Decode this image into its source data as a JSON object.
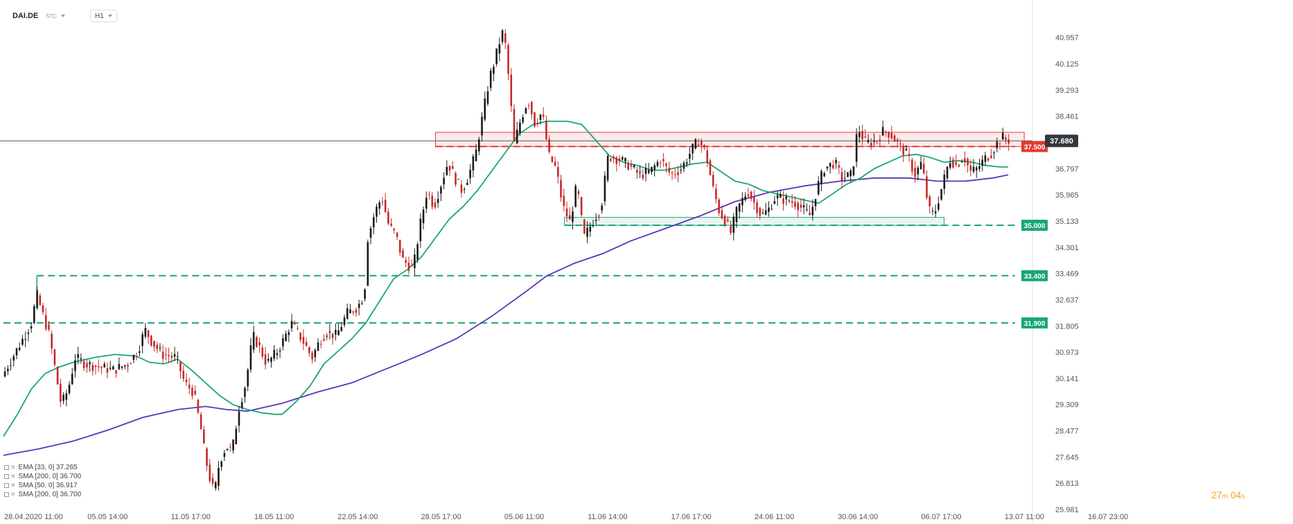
{
  "header": {
    "symbol": "DAI.DE",
    "source": "STC",
    "timeframe": "H1"
  },
  "current_price": "37.680",
  "indicators": [
    {
      "label": "EMA [33, 0]",
      "value": "37.265"
    },
    {
      "label": "SMA [200, 0]",
      "value": "36.700"
    },
    {
      "label": "SMA [50, 0]",
      "value": "36.917"
    },
    {
      "label": "SMA [200, 0]",
      "value": "36.700"
    }
  ],
  "timer": {
    "minutes": "27",
    "min_unit": "m",
    "seconds": "04",
    "sec_unit": "s"
  },
  "colors": {
    "up": "#1a1a1a",
    "down": "#c62828",
    "ema": "#1aa57a",
    "sma": "#5b35b5",
    "resistance": "#e53935",
    "support": "#1aa57a",
    "price_tag": "#33383d"
  },
  "chart_data": {
    "type": "candlestick",
    "ylim": [
      25.981,
      41.6
    ],
    "y_ticks": [
      "40.957",
      "40.125",
      "39.293",
      "38.461",
      "36.797",
      "35.965",
      "35.133",
      "34.301",
      "33.469",
      "32.637",
      "31.805",
      "30.973",
      "30.141",
      "29.309",
      "28.477",
      "27.645",
      "26.813",
      "25.981"
    ],
    "x_ticks": [
      "28.04.2020  11:00",
      "05.05  14:00",
      "11.05  17:00",
      "18.05  11:00",
      "22.05  14:00",
      "28.05  17:00",
      "05.06  11:00",
      "11.06  14:00",
      "17.06  17:00",
      "24.06  11:00",
      "30.06  14:00",
      "06.07  17:00",
      "13.07  11:00",
      "16.07  23:00"
    ],
    "levels": [
      {
        "label": "37.500",
        "value": 37.5,
        "color": "resistance"
      },
      {
        "label": "35.000",
        "value": 35.0,
        "color": "support"
      },
      {
        "label": "33.400",
        "value": 33.4,
        "color": "support"
      },
      {
        "label": "31.900",
        "value": 31.9,
        "color": "support"
      }
    ],
    "zones": [
      {
        "type": "resistance",
        "from": 37.5,
        "to": 37.95
      },
      {
        "type": "support",
        "from": 35.0,
        "to": 35.25
      }
    ],
    "price_path": [
      [
        0,
        30.2
      ],
      [
        15,
        30.8
      ],
      [
        30,
        31.4
      ],
      [
        42,
        31.9
      ],
      [
        50,
        32.8
      ],
      [
        58,
        32.2
      ],
      [
        68,
        31.5
      ],
      [
        78,
        30.2
      ],
      [
        85,
        29.3
      ],
      [
        95,
        29.8
      ],
      [
        105,
        30.8
      ],
      [
        120,
        30.6
      ],
      [
        140,
        30.5
      ],
      [
        160,
        30.4
      ],
      [
        180,
        30.6
      ],
      [
        195,
        31.0
      ],
      [
        205,
        31.7
      ],
      [
        215,
        31.3
      ],
      [
        230,
        30.9
      ],
      [
        250,
        30.8
      ],
      [
        262,
        30.0
      ],
      [
        275,
        29.7
      ],
      [
        285,
        28.6
      ],
      [
        292,
        27.6
      ],
      [
        300,
        26.8
      ],
      [
        305,
        26.5
      ],
      [
        312,
        27.5
      ],
      [
        322,
        28.0
      ],
      [
        330,
        27.8
      ],
      [
        340,
        29.2
      ],
      [
        350,
        30.0
      ],
      [
        360,
        31.5
      ],
      [
        370,
        31.1
      ],
      [
        380,
        30.6
      ],
      [
        395,
        31.0
      ],
      [
        405,
        31.4
      ],
      [
        415,
        31.9
      ],
      [
        430,
        31.4
      ],
      [
        445,
        30.8
      ],
      [
        455,
        31.3
      ],
      [
        465,
        31.6
      ],
      [
        480,
        31.5
      ],
      [
        495,
        32.2
      ],
      [
        510,
        32.4
      ],
      [
        520,
        32.8
      ],
      [
        525,
        34.6
      ],
      [
        535,
        35.4
      ],
      [
        545,
        35.9
      ],
      [
        555,
        35.0
      ],
      [
        565,
        34.7
      ],
      [
        575,
        33.9
      ],
      [
        590,
        33.6
      ],
      [
        600,
        35.0
      ],
      [
        610,
        36.1
      ],
      [
        620,
        35.6
      ],
      [
        630,
        36.3
      ],
      [
        640,
        37.0
      ],
      [
        650,
        36.5
      ],
      [
        660,
        36.1
      ],
      [
        670,
        36.6
      ],
      [
        680,
        37.3
      ],
      [
        690,
        38.5
      ],
      [
        700,
        39.7
      ],
      [
        708,
        40.3
      ],
      [
        715,
        40.9
      ],
      [
        720,
        41.2
      ],
      [
        725,
        40.2
      ],
      [
        730,
        38.9
      ],
      [
        735,
        37.6
      ],
      [
        745,
        38.4
      ],
      [
        755,
        39.0
      ],
      [
        765,
        38.2
      ],
      [
        775,
        38.6
      ],
      [
        785,
        37.2
      ],
      [
        795,
        36.8
      ],
      [
        805,
        35.6
      ],
      [
        815,
        35.1
      ],
      [
        825,
        36.3
      ],
      [
        835,
        34.6
      ],
      [
        845,
        35.0
      ],
      [
        860,
        35.6
      ],
      [
        870,
        37.2
      ],
      [
        885,
        37.1
      ],
      [
        900,
        36.9
      ],
      [
        915,
        36.6
      ],
      [
        930,
        36.7
      ],
      [
        945,
        37.1
      ],
      [
        960,
        36.6
      ],
      [
        975,
        36.8
      ],
      [
        990,
        37.4
      ],
      [
        1000,
        37.7
      ],
      [
        1010,
        37.3
      ],
      [
        1020,
        36.2
      ],
      [
        1030,
        35.4
      ],
      [
        1040,
        35.1
      ],
      [
        1045,
        34.7
      ],
      [
        1055,
        35.5
      ],
      [
        1070,
        36.1
      ],
      [
        1080,
        35.7
      ],
      [
        1090,
        35.3
      ],
      [
        1100,
        35.5
      ],
      [
        1110,
        35.9
      ],
      [
        1125,
        35.8
      ],
      [
        1140,
        35.7
      ],
      [
        1150,
        35.5
      ],
      [
        1160,
        35.3
      ],
      [
        1170,
        36.2
      ],
      [
        1180,
        36.8
      ],
      [
        1195,
        37.0
      ],
      [
        1205,
        36.5
      ],
      [
        1220,
        36.6
      ],
      [
        1228,
        38.1
      ],
      [
        1240,
        37.6
      ],
      [
        1255,
        37.7
      ],
      [
        1265,
        38.0
      ],
      [
        1275,
        37.9
      ],
      [
        1285,
        37.6
      ],
      [
        1300,
        37.2
      ],
      [
        1310,
        36.6
      ],
      [
        1320,
        37.0
      ],
      [
        1328,
        35.8
      ],
      [
        1333,
        35.3
      ],
      [
        1340,
        35.5
      ],
      [
        1350,
        36.3
      ],
      [
        1360,
        37.1
      ],
      [
        1370,
        36.9
      ],
      [
        1380,
        37.2
      ],
      [
        1390,
        36.7
      ],
      [
        1400,
        36.8
      ],
      [
        1410,
        37.1
      ],
      [
        1420,
        37.3
      ],
      [
        1428,
        37.6
      ],
      [
        1435,
        37.8
      ],
      [
        1442,
        37.7
      ]
    ],
    "ema_path": [
      [
        0,
        28.3
      ],
      [
        20,
        29.0
      ],
      [
        40,
        29.8
      ],
      [
        60,
        30.3
      ],
      [
        80,
        30.5
      ],
      [
        100,
        30.65
      ],
      [
        130,
        30.8
      ],
      [
        160,
        30.9
      ],
      [
        190,
        30.85
      ],
      [
        210,
        30.65
      ],
      [
        230,
        30.6
      ],
      [
        250,
        30.75
      ],
      [
        270,
        30.4
      ],
      [
        290,
        30.0
      ],
      [
        310,
        29.6
      ],
      [
        330,
        29.3
      ],
      [
        350,
        29.15
      ],
      [
        370,
        29.05
      ],
      [
        390,
        29.0
      ],
      [
        400,
        29.0
      ],
      [
        420,
        29.4
      ],
      [
        440,
        29.9
      ],
      [
        460,
        30.6
      ],
      [
        480,
        31.0
      ],
      [
        500,
        31.4
      ],
      [
        520,
        31.9
      ],
      [
        540,
        32.6
      ],
      [
        560,
        33.3
      ],
      [
        580,
        33.6
      ],
      [
        600,
        34.0
      ],
      [
        620,
        34.6
      ],
      [
        640,
        35.2
      ],
      [
        660,
        35.6
      ],
      [
        680,
        36.1
      ],
      [
        700,
        36.7
      ],
      [
        720,
        37.3
      ],
      [
        740,
        37.9
      ],
      [
        760,
        38.2
      ],
      [
        780,
        38.3
      ],
      [
        810,
        38.3
      ],
      [
        830,
        38.2
      ],
      [
        850,
        37.7
      ],
      [
        870,
        37.2
      ],
      [
        890,
        37.0
      ],
      [
        910,
        36.9
      ],
      [
        930,
        36.75
      ],
      [
        950,
        36.75
      ],
      [
        970,
        36.85
      ],
      [
        990,
        36.95
      ],
      [
        1010,
        37.0
      ],
      [
        1030,
        36.7
      ],
      [
        1050,
        36.4
      ],
      [
        1070,
        36.3
      ],
      [
        1090,
        36.1
      ],
      [
        1110,
        36.0
      ],
      [
        1130,
        35.9
      ],
      [
        1150,
        35.8
      ],
      [
        1170,
        35.7
      ],
      [
        1190,
        36.0
      ],
      [
        1210,
        36.3
      ],
      [
        1230,
        36.5
      ],
      [
        1250,
        36.8
      ],
      [
        1270,
        37.0
      ],
      [
        1290,
        37.2
      ],
      [
        1310,
        37.25
      ],
      [
        1330,
        37.15
      ],
      [
        1350,
        37.0
      ],
      [
        1370,
        37.05
      ],
      [
        1390,
        37.0
      ],
      [
        1410,
        36.9
      ],
      [
        1430,
        36.85
      ],
      [
        1442,
        36.85
      ]
    ],
    "sma_path": [
      [
        0,
        27.7
      ],
      [
        50,
        27.9
      ],
      [
        100,
        28.15
      ],
      [
        150,
        28.5
      ],
      [
        200,
        28.9
      ],
      [
        250,
        29.15
      ],
      [
        290,
        29.25
      ],
      [
        320,
        29.15
      ],
      [
        350,
        29.1
      ],
      [
        400,
        29.35
      ],
      [
        450,
        29.7
      ],
      [
        500,
        30.0
      ],
      [
        550,
        30.45
      ],
      [
        600,
        30.9
      ],
      [
        650,
        31.4
      ],
      [
        700,
        32.1
      ],
      [
        750,
        32.9
      ],
      [
        780,
        33.4
      ],
      [
        820,
        33.8
      ],
      [
        860,
        34.1
      ],
      [
        900,
        34.5
      ],
      [
        950,
        34.9
      ],
      [
        1000,
        35.3
      ],
      [
        1050,
        35.75
      ],
      [
        1100,
        36.05
      ],
      [
        1150,
        36.25
      ],
      [
        1200,
        36.4
      ],
      [
        1250,
        36.5
      ],
      [
        1300,
        36.5
      ],
      [
        1340,
        36.4
      ],
      [
        1380,
        36.4
      ],
      [
        1420,
        36.5
      ],
      [
        1442,
        36.6
      ]
    ]
  }
}
